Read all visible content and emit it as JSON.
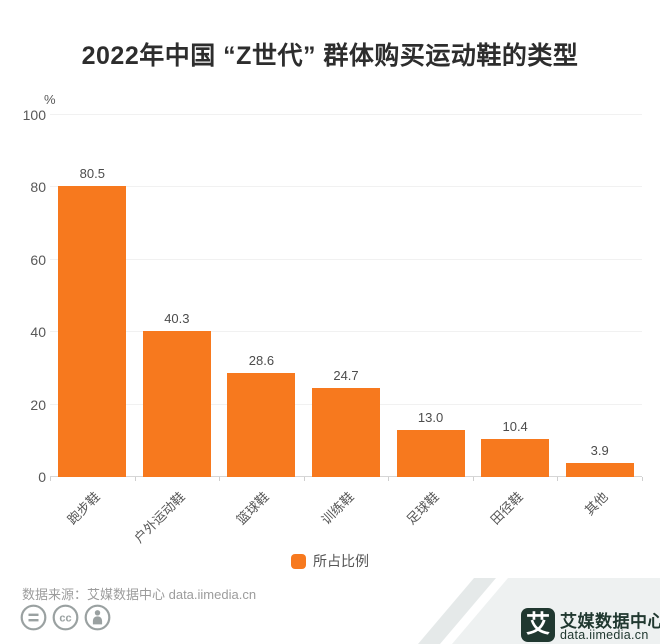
{
  "title": "2022年中国 “Z世代” 群体购买运动鞋的类型",
  "chart_data": {
    "type": "bar",
    "categories": [
      "跑步鞋",
      "户外运动鞋",
      "篮球鞋",
      "训练鞋",
      "足球鞋",
      "田径鞋",
      "其他"
    ],
    "values": [
      80.5,
      40.3,
      28.6,
      24.7,
      13.0,
      10.4,
      3.9
    ],
    "value_labels": [
      "80.5",
      "40.3",
      "28.6",
      "24.7",
      "13.0",
      "10.4",
      "3.9"
    ],
    "series_name": "所占比例",
    "title": "2022年中国 “Z世代” 群体购买运动鞋的类型",
    "xlabel": "",
    "ylabel": "%",
    "ylim": [
      0,
      100
    ],
    "yticks": [
      0,
      20,
      40,
      60,
      80,
      100
    ],
    "bar_color": "#f7791e",
    "grid": true,
    "legend_position": "bottom"
  },
  "y_axis": {
    "unit_label": "%",
    "tick_labels": [
      "0",
      "20",
      "40",
      "60",
      "80",
      "100"
    ]
  },
  "legend": {
    "label": "所占比例",
    "marker_color": "#f7791e"
  },
  "footer": {
    "source_text": "数据来源：艾媒数据中心 data.iimedia.cn",
    "license_icons": [
      "equals-icon",
      "cc-icon",
      "person-icon"
    ],
    "icon_color": "#9aa1a1"
  },
  "brand": {
    "logo_char": "艾",
    "name": "艾媒数据中心",
    "site": "data.iimedia.cn",
    "logo_color": "#203830",
    "ribbon_colors": [
      "#eef1f1",
      "#e5e9e9"
    ]
  }
}
